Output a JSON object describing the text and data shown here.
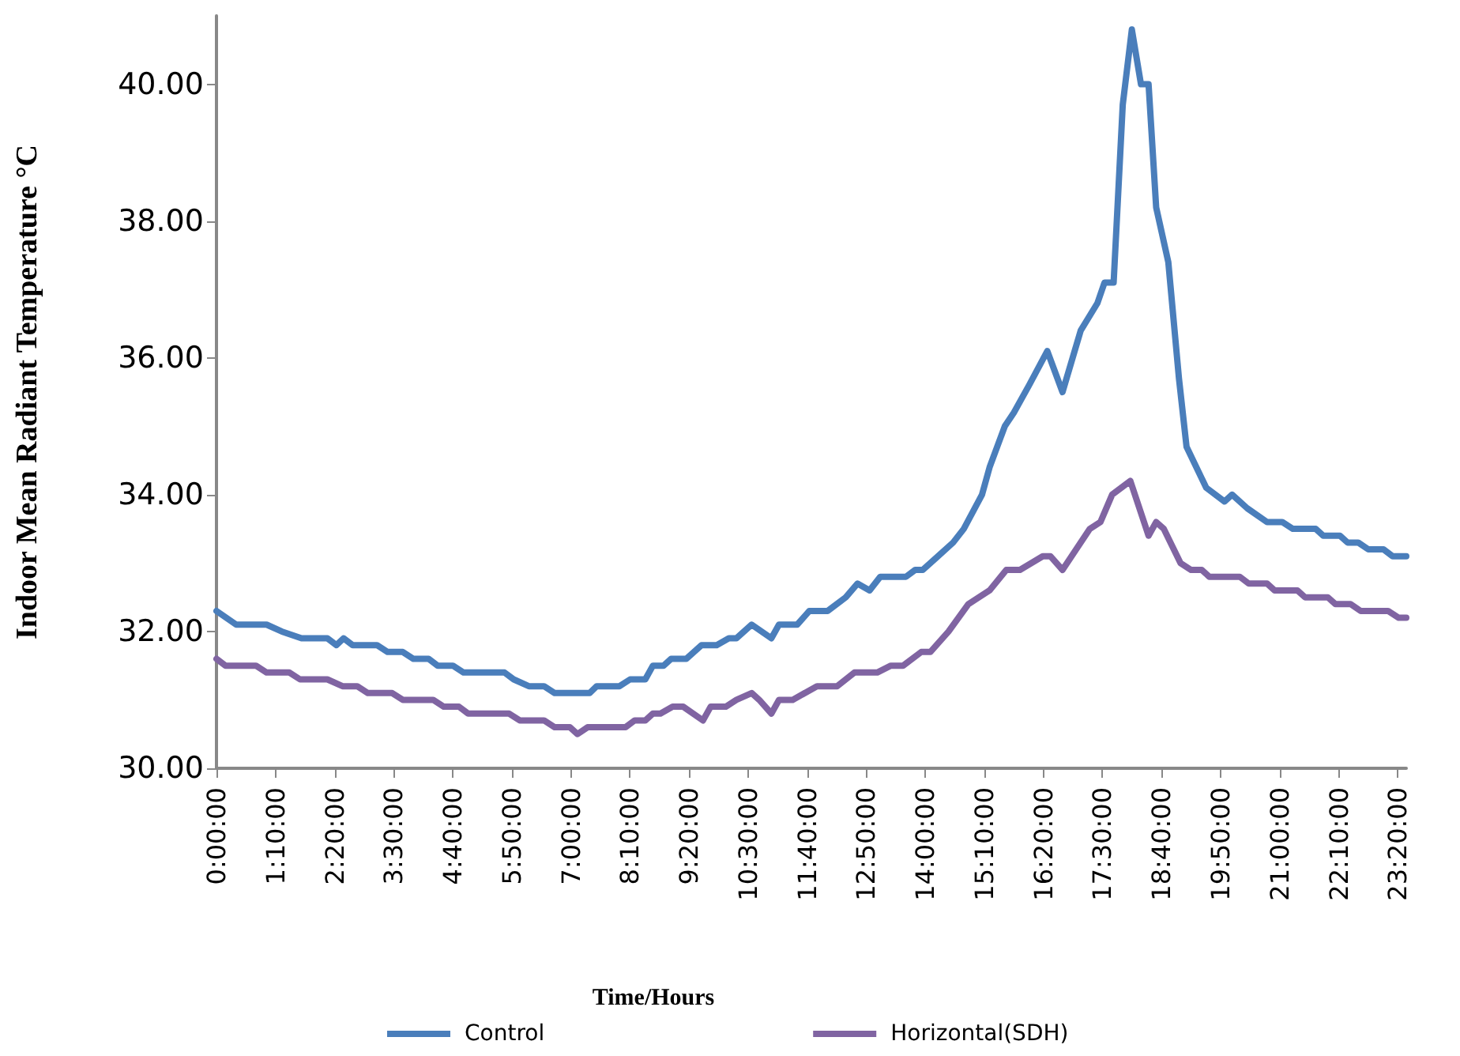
{
  "chart_data": {
    "type": "line",
    "xlabel": "Time/Hours",
    "ylabel": "Indoor Mean Radiant Temperature °C",
    "xlim": [
      0,
      23.5
    ],
    "ylim": [
      30,
      41
    ],
    "xticks": [
      {
        "value": 0,
        "label": "0:00:00"
      },
      {
        "value": 1.1667,
        "label": "1:10:00"
      },
      {
        "value": 2.3333,
        "label": "2:20:00"
      },
      {
        "value": 3.5,
        "label": "3:30:00"
      },
      {
        "value": 4.6667,
        "label": "4:40:00"
      },
      {
        "value": 5.8333,
        "label": "5:50:00"
      },
      {
        "value": 7,
        "label": "7:00:00"
      },
      {
        "value": 8.1667,
        "label": "8:10:00"
      },
      {
        "value": 9.3333,
        "label": "9:20:00"
      },
      {
        "value": 10.5,
        "label": "10:30:00"
      },
      {
        "value": 11.6667,
        "label": "11:40:00"
      },
      {
        "value": 12.8333,
        "label": "12:50:00"
      },
      {
        "value": 14,
        "label": "14:00:00"
      },
      {
        "value": 15.1667,
        "label": "15:10:00"
      },
      {
        "value": 16.3333,
        "label": "16:20:00"
      },
      {
        "value": 17.5,
        "label": "17:30:00"
      },
      {
        "value": 18.6667,
        "label": "18:40:00"
      },
      {
        "value": 19.8333,
        "label": "19:50:00"
      },
      {
        "value": 21,
        "label": "21:00:00"
      },
      {
        "value": 22.1667,
        "label": "22:10:00"
      },
      {
        "value": 23.3333,
        "label": "23:20:00"
      }
    ],
    "yticks": [
      {
        "value": 30,
        "label": "30.00"
      },
      {
        "value": 32,
        "label": "32.00"
      },
      {
        "value": 34,
        "label": "34.00"
      },
      {
        "value": 36,
        "label": "36.00"
      },
      {
        "value": 38,
        "label": "38.00"
      },
      {
        "value": 40,
        "label": "40.00"
      }
    ],
    "grid": false,
    "legend": "bottom",
    "marker": "none",
    "line_style": "solid",
    "series": [
      {
        "name": "Control",
        "color": "#4a7ebb",
        "x": [
          0,
          0.39,
          0.99,
          1.29,
          1.68,
          2.19,
          2.37,
          2.51,
          2.69,
          3.17,
          3.38,
          3.68,
          3.89,
          4.19,
          4.37,
          4.67,
          4.88,
          5.69,
          5.87,
          6.17,
          6.47,
          6.68,
          7.37,
          7.51,
          7.96,
          8.17,
          8.47,
          8.62,
          8.83,
          8.98,
          9.28,
          9.58,
          9.88,
          10.12,
          10.27,
          10.57,
          10.96,
          11.11,
          11.47,
          11.71,
          12.07,
          12.43,
          12.66,
          12.9,
          13.11,
          13.62,
          13.8,
          13.95,
          14.25,
          14.55,
          14.76,
          15.12,
          15.27,
          15.57,
          15.75,
          16.05,
          16.41,
          16.71,
          17.07,
          17.4,
          17.54,
          17.72,
          17.9,
          18.08,
          18.26,
          18.41,
          18.56,
          18.8,
          19.01,
          19.16,
          19.55,
          19.91,
          20.06,
          20.36,
          20.75,
          21.05,
          21.26,
          21.71,
          21.86,
          22.19,
          22.34,
          22.55,
          22.75,
          23.05,
          23.23,
          23.5
        ],
        "values": [
          32.3,
          32.1,
          32.1,
          32.0,
          31.9,
          31.9,
          31.8,
          31.9,
          31.8,
          31.8,
          31.7,
          31.7,
          31.6,
          31.6,
          31.5,
          31.5,
          31.4,
          31.4,
          31.3,
          31.2,
          31.2,
          31.1,
          31.1,
          31.2,
          31.2,
          31.3,
          31.3,
          31.5,
          31.5,
          31.6,
          31.6,
          31.8,
          31.8,
          31.9,
          31.9,
          32.1,
          31.9,
          32.1,
          32.1,
          32.3,
          32.3,
          32.5,
          32.7,
          32.6,
          32.8,
          32.8,
          32.9,
          32.9,
          33.1,
          33.3,
          33.5,
          34.0,
          34.4,
          35.0,
          35.2,
          35.6,
          36.1,
          35.5,
          36.4,
          36.8,
          37.1,
          37.1,
          39.7,
          40.8,
          40.0,
          40.0,
          38.2,
          37.4,
          35.7,
          34.7,
          34.1,
          33.9,
          34.0,
          33.8,
          33.6,
          33.6,
          33.5,
          33.5,
          33.4,
          33.4,
          33.3,
          33.3,
          33.2,
          33.2,
          33.1,
          33.1
        ]
      },
      {
        "name": "Horizontal(SDH)",
        "color": "#8064a2",
        "x": [
          0,
          0.18,
          0.78,
          0.99,
          1.44,
          1.65,
          2.19,
          2.49,
          2.78,
          2.99,
          3.47,
          3.68,
          4.28,
          4.49,
          4.79,
          4.97,
          5.78,
          5.99,
          6.47,
          6.68,
          6.98,
          7.13,
          7.33,
          8.08,
          8.26,
          8.47,
          8.62,
          8.77,
          9.01,
          9.22,
          9.61,
          9.76,
          10.06,
          10.27,
          10.57,
          10.72,
          10.96,
          11.11,
          11.38,
          11.86,
          12.26,
          12.6,
          13.05,
          13.32,
          13.56,
          13.92,
          14.1,
          14.46,
          14.85,
          15.27,
          15.6,
          15.87,
          16.32,
          16.47,
          16.71,
          17.25,
          17.46,
          17.69,
          18.05,
          18.41,
          18.56,
          18.71,
          19.04,
          19.25,
          19.46,
          19.61,
          20.21,
          20.39,
          20.75,
          20.9,
          21.35,
          21.5,
          21.95,
          22.1,
          22.4,
          22.6,
          23.14,
          23.35,
          23.5
        ],
        "values": [
          31.6,
          31.5,
          31.5,
          31.4,
          31.4,
          31.3,
          31.3,
          31.2,
          31.2,
          31.1,
          31.1,
          31.0,
          31.0,
          30.9,
          30.9,
          30.8,
          30.8,
          30.7,
          30.7,
          30.6,
          30.6,
          30.5,
          30.6,
          30.6,
          30.7,
          30.7,
          30.8,
          30.8,
          30.9,
          30.9,
          30.7,
          30.9,
          30.9,
          31.0,
          31.1,
          31.0,
          30.8,
          31.0,
          31.0,
          31.2,
          31.2,
          31.4,
          31.4,
          31.5,
          31.5,
          31.7,
          31.7,
          32.0,
          32.4,
          32.6,
          32.9,
          32.9,
          33.1,
          33.1,
          32.9,
          33.5,
          33.6,
          34.0,
          34.2,
          33.4,
          33.6,
          33.5,
          33.0,
          32.9,
          32.9,
          32.8,
          32.8,
          32.7,
          32.7,
          32.6,
          32.6,
          32.5,
          32.5,
          32.4,
          32.4,
          32.3,
          32.3,
          32.2,
          32.2
        ]
      }
    ]
  }
}
